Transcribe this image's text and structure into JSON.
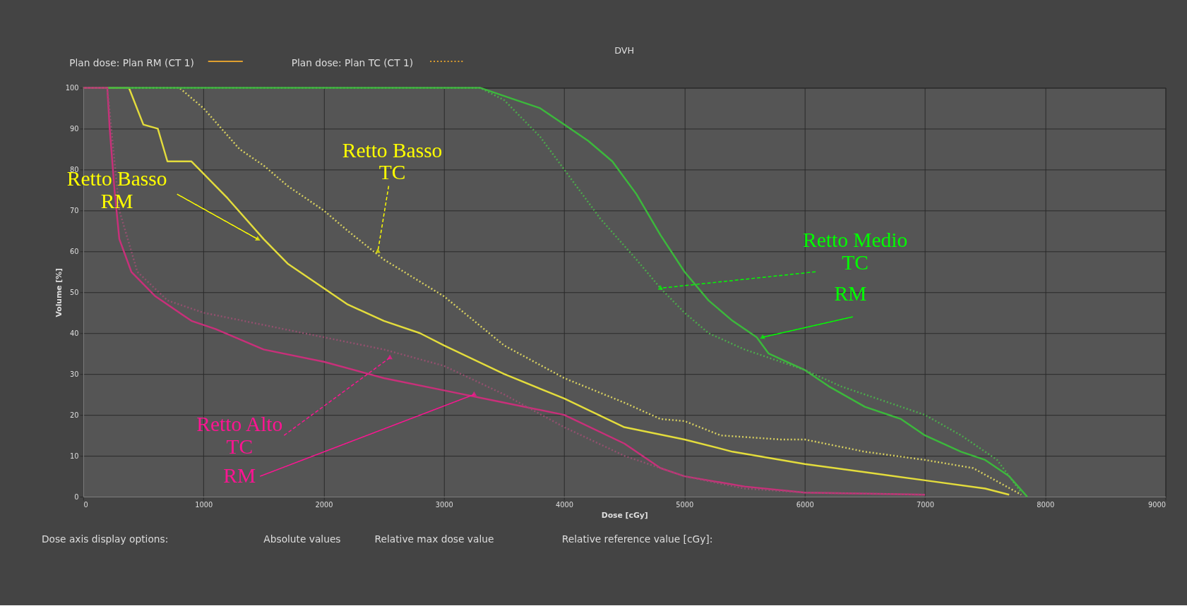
{
  "chart_data": {
    "type": "line",
    "title": "DVH",
    "xlabel": "Dose [cGy]",
    "ylabel": "Volume [%]",
    "xlim": [
      0,
      9000
    ],
    "xticks": [
      0,
      1000,
      2000,
      3000,
      4000,
      5000,
      6000,
      7000,
      8000,
      9000
    ],
    "ylim": [
      0,
      100
    ],
    "yticks": [
      0,
      10,
      20,
      30,
      40,
      50,
      60,
      70,
      80,
      90,
      100
    ],
    "grid": true,
    "marker": "none",
    "series": [
      {
        "color": "#e3dc3c",
        "line_style": "solid",
        "x": [
          0,
          380,
          500,
          620,
          700,
          900,
          1000,
          1200,
          1500,
          1700,
          2000,
          2200,
          2500,
          2800,
          3000,
          3500,
          4000,
          4500,
          5000,
          5400,
          6000,
          6500,
          7000,
          7500,
          7700
        ],
        "values": [
          100,
          100,
          91,
          90,
          82,
          82,
          79,
          73,
          63,
          57,
          51,
          47,
          43,
          40,
          37,
          30,
          24,
          17,
          14,
          11,
          8,
          6,
          4,
          2,
          0.5
        ]
      },
      {
        "color": "#d8d060",
        "line_style": "dotted",
        "x": [
          0,
          800,
          1000,
          1300,
          1500,
          1700,
          2000,
          2200,
          2500,
          3000,
          3500,
          4000,
          4500,
          4800,
          5000,
          5300,
          5800,
          6000,
          6500,
          7000,
          7400,
          7800
        ],
        "values": [
          100,
          100,
          95,
          85,
          81,
          76,
          70,
          65,
          58,
          49,
          37,
          29,
          23,
          19,
          18.5,
          15,
          14,
          14,
          11,
          9,
          7,
          0.5
        ]
      },
      {
        "color": "#3cb83c",
        "line_style": "solid",
        "x": [
          0,
          3300,
          3600,
          3800,
          4000,
          4200,
          4400,
          4600,
          4800,
          5000,
          5200,
          5400,
          5600,
          5700,
          6000,
          6200,
          6500,
          6800,
          7000,
          7300,
          7500,
          7700,
          7850
        ],
        "values": [
          100,
          100,
          97,
          95,
          91,
          87,
          82,
          74,
          64,
          55,
          48,
          43,
          39,
          35,
          31,
          27,
          22,
          19,
          15,
          11,
          9,
          5,
          0
        ]
      },
      {
        "color": "#4caa4c",
        "line_style": "dotted",
        "x": [
          0,
          3300,
          3500,
          3800,
          4000,
          4300,
          4600,
          4800,
          5000,
          5200,
          5500,
          5700,
          6000,
          6300,
          6600,
          7000,
          7300,
          7600,
          7800
        ],
        "values": [
          100,
          100,
          97,
          88,
          80,
          68,
          58,
          51,
          45,
          40,
          36,
          34,
          31,
          27,
          24,
          20,
          15,
          9,
          1
        ]
      },
      {
        "color": "#c8307a",
        "line_style": "solid",
        "x": [
          0,
          200,
          220,
          260,
          300,
          400,
          600,
          900,
          1100,
          1500,
          2000,
          2500,
          3000,
          3500,
          4000,
          4500,
          4800,
          5000,
          5500,
          6000,
          7000
        ],
        "values": [
          100,
          100,
          90,
          75,
          63,
          55,
          49,
          43,
          41,
          36,
          33,
          29,
          26,
          23,
          20,
          13,
          7,
          5,
          2.5,
          1,
          0.5
        ]
      },
      {
        "color": "#94506f",
        "line_style": "dotted",
        "x": [
          0,
          200,
          300,
          450,
          700,
          1000,
          1500,
          2000,
          2500,
          3000,
          3500,
          4000,
          4500,
          5000,
          5500,
          6000,
          7000
        ],
        "values": [
          100,
          100,
          70,
          55,
          48,
          45,
          42,
          39,
          36,
          32,
          25,
          17,
          10,
          5,
          2,
          1,
          0.5
        ]
      }
    ],
    "annotations": [
      {
        "text": "Retto  Basso\nRM",
        "x": 1450,
        "y": 63
      },
      {
        "text": "Retto Basso\nTC",
        "x": 2450,
        "y": 60
      },
      {
        "text": "Retto Medio\nTC",
        "x": 4800,
        "y": 51
      },
      {
        "text": "RM",
        "x": 5650,
        "y": 39
      },
      {
        "text": "Retto Alto\nTC",
        "x": 2550,
        "y": 34
      },
      {
        "text": "RM",
        "x": 3250,
        "y": 25
      },
      "Plan dose: Plan RM (CT 1)",
      "Plan dose: Plan TC (CT 1)",
      "Dose axis display options:",
      "Absolute values",
      "Relative max dose value",
      "Relative reference value [cGy]:"
    ]
  }
}
